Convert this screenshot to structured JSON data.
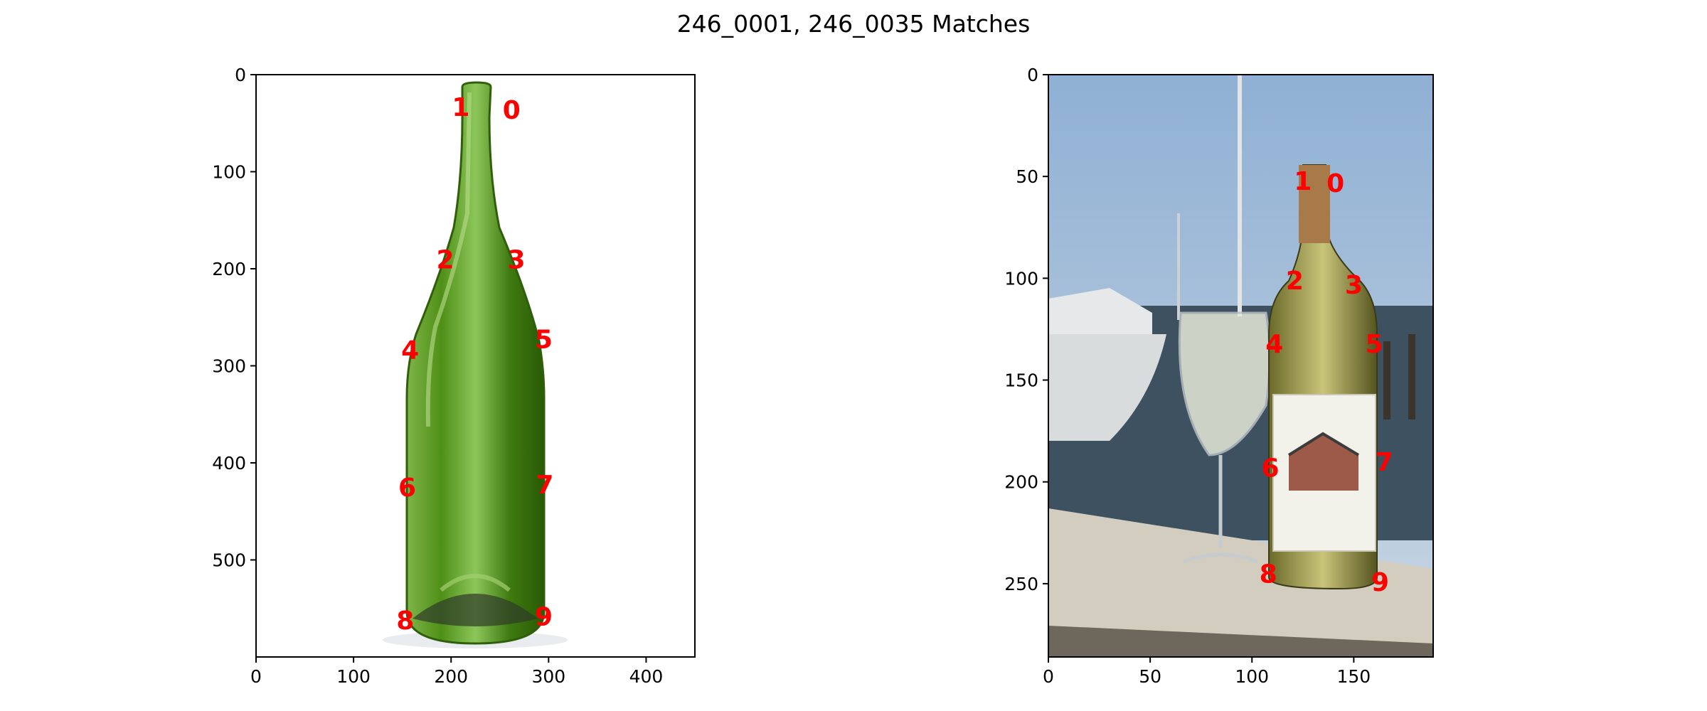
{
  "title": "246_0001, 246_0035 Matches",
  "colors": {
    "marker": "#ff0000",
    "axis": "#000000",
    "green_glass": "#5a9c1e",
    "sky": "#a9c2dc",
    "water": "#3e5160",
    "rail": "#d3cdbf"
  },
  "chart_data": [
    {
      "type": "scatter",
      "image": "green-wine-bottle-photo",
      "title": "",
      "xlabel": "",
      "ylabel": "",
      "xlim": [
        0,
        450
      ],
      "ylim": [
        600,
        0
      ],
      "xticks": [
        0,
        100,
        200,
        300,
        400
      ],
      "yticks": [
        0,
        100,
        200,
        300,
        400,
        500
      ],
      "points": [
        {
          "label": "0",
          "x": 262,
          "y": 36
        },
        {
          "label": "1",
          "x": 210,
          "y": 33
        },
        {
          "label": "2",
          "x": 194,
          "y": 190
        },
        {
          "label": "3",
          "x": 267,
          "y": 190
        },
        {
          "label": "4",
          "x": 158,
          "y": 283
        },
        {
          "label": "5",
          "x": 295,
          "y": 272
        },
        {
          "label": "6",
          "x": 155,
          "y": 425
        },
        {
          "label": "7",
          "x": 296,
          "y": 422
        },
        {
          "label": "8",
          "x": 153,
          "y": 562
        },
        {
          "label": "9",
          "x": 295,
          "y": 558
        }
      ]
    },
    {
      "type": "scatter",
      "image": "white-wine-bottle-and-glass-on-dock-photo",
      "title": "",
      "xlabel": "",
      "ylabel": "",
      "xlim": [
        0,
        189
      ],
      "ylim": [
        286,
        0
      ],
      "xticks": [
        0,
        50,
        100,
        150
      ],
      "yticks": [
        0,
        50,
        100,
        150,
        200,
        250
      ],
      "points": [
        {
          "label": "0",
          "x": 141,
          "y": 53
        },
        {
          "label": "1",
          "x": 125,
          "y": 52
        },
        {
          "label": "2",
          "x": 121,
          "y": 101
        },
        {
          "label": "3",
          "x": 150,
          "y": 103
        },
        {
          "label": "4",
          "x": 111,
          "y": 132
        },
        {
          "label": "5",
          "x": 160,
          "y": 132
        },
        {
          "label": "6",
          "x": 109,
          "y": 193
        },
        {
          "label": "7",
          "x": 165,
          "y": 190
        },
        {
          "label": "8",
          "x": 108,
          "y": 245
        },
        {
          "label": "9",
          "x": 163,
          "y": 249
        }
      ]
    }
  ]
}
